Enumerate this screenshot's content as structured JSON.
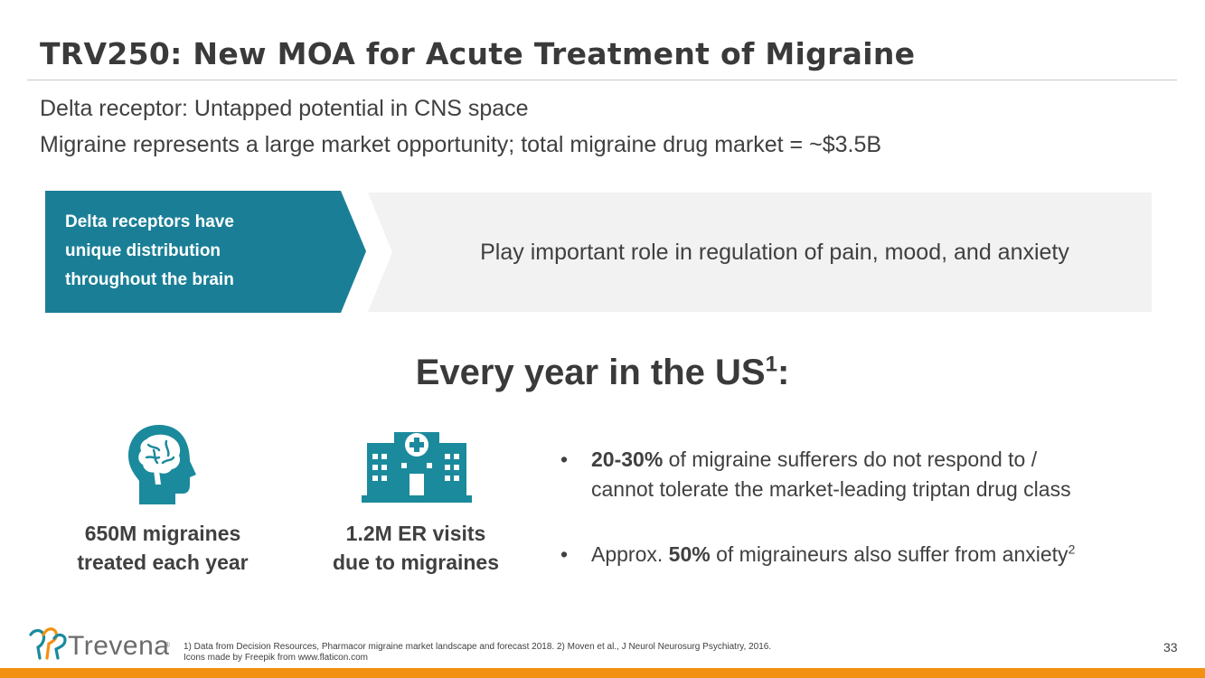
{
  "slide": {
    "title": "TRV250: New MOA for Acute Treatment of Migraine",
    "subtitle_1": "Delta receptor: Untapped potential in CNS space",
    "subtitle_2": "Migraine represents a large market opportunity; total migraine drug market = ~$3.5B"
  },
  "banner": {
    "left_line_1": "Delta receptors have",
    "left_line_2": "unique distribution",
    "left_line_3": "throughout the brain",
    "right_text": "Play important role in regulation of pain, mood, and anxiety",
    "left_color": "#1a7f96",
    "right_color": "#f2f2f2"
  },
  "section": {
    "heading_text": "Every year in the US",
    "heading_sup": "1",
    "heading_suffix": ":"
  },
  "stats": [
    {
      "icon": "brain-head-icon",
      "line_1": "650M migraines",
      "line_2": "treated each year"
    },
    {
      "icon": "hospital-icon",
      "line_1": "1.2M ER visits",
      "line_2": "due to migraines"
    }
  ],
  "bullets": {
    "b1_bold": "20-30%",
    "b1_rest": " of migraine sufferers do not respond to /",
    "b1_line2": "cannot tolerate the market-leading triptan drug class",
    "b2_prefix": "Approx. ",
    "b2_bold": "50%",
    "b2_rest": " of migraineurs also suffer from anxiety",
    "b2_sup": "2",
    "bullet_char": "•"
  },
  "footer": {
    "logo_text": "Trevena",
    "logo_reg": "®",
    "footnote_line_1": "1) Data from Decision Resources, Pharmacor migraine market landscape and forecast 2018. 2) Moven et al., J Neurol Neurosurg Psychiatry, 2016.",
    "footnote_line_2": "Icons made by Freepik from www.flaticon.com",
    "page_number": "33"
  },
  "colors": {
    "accent_teal": "#1a7f96",
    "icon_teal": "#1b8a9c",
    "bottom_bar": "#f29111",
    "logo_orange": "#f29111",
    "logo_teal": "#1b8a9c"
  }
}
